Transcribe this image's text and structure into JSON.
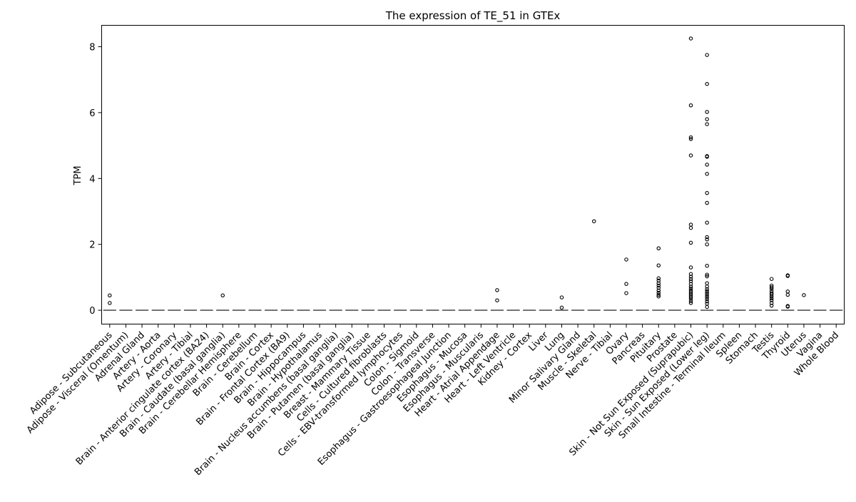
{
  "chart_data": {
    "type": "box",
    "title": "The expression of TE_51 in GTEx",
    "xlabel": "",
    "ylabel": "TPM",
    "ylim": [
      -0.42,
      8.65
    ],
    "yticks": [
      0,
      2,
      4,
      6,
      8
    ],
    "grid": false,
    "legend": "none",
    "colors": {
      "axis": "#000000",
      "median": "#555555",
      "outlier": "#000000"
    },
    "categories": [
      "Adipose - Subcutaneous",
      "Adipose - Visceral (Omentum)",
      "Adrenal Gland",
      "Artery - Aorta",
      "Artery - Coronary",
      "Artery - Tibial",
      "Brain - Anterior cingulate cortex (BA24)",
      "Brain - Caudate (basal ganglia)",
      "Brain - Cerebellar Hemisphere",
      "Brain - Cerebellum",
      "Brain - Cortex",
      "Brain - Frontal Cortex (BA9)",
      "Brain - Hippocampus",
      "Brain - Hypothalamus",
      "Brain - Nucleus accumbens (basal ganglia)",
      "Brain - Putamen (basal ganglia)",
      "Breast - Mammary Tissue",
      "Cells - Cultured fibroblasts",
      "Cells - EBV-transformed lymphocytes",
      "Colon - Sigmoid",
      "Colon - Transverse",
      "Esophagus - Gastroesophageal Junction",
      "Esophagus - Mucosa",
      "Esophagus - Muscularis",
      "Heart - Atrial Appendage",
      "Heart - Left Ventricle",
      "Kidney - Cortex",
      "Liver",
      "Lung",
      "Minor Salivary Gland",
      "Muscle - Skeletal",
      "Nerve - Tibial",
      "Ovary",
      "Pancreas",
      "Pituitary",
      "Prostate",
      "Skin - Not Sun Exposed (Suprapubic)",
      "Skin - Sun Exposed (Lower leg)",
      "Small Intestine - Terminal Ileum",
      "Spleen",
      "Stomach",
      "Testis",
      "Thyroid",
      "Uterus",
      "Vagina",
      "Whole Blood"
    ],
    "medians": [
      0,
      0,
      0,
      0,
      0,
      0,
      0,
      0,
      0,
      0,
      0,
      0,
      0,
      0,
      0,
      0,
      0,
      0,
      0,
      0,
      0,
      0,
      0,
      0,
      0,
      0,
      0,
      0,
      0,
      0,
      0,
      0,
      0,
      0,
      0,
      0,
      0,
      0,
      0,
      0,
      0,
      0,
      0,
      0,
      0,
      0
    ],
    "outliers": [
      [
        0.45,
        0.22
      ],
      [],
      [],
      [],
      [],
      [],
      [],
      [
        0.45
      ],
      [],
      [],
      [],
      [],
      [],
      [],
      [],
      [],
      [],
      [],
      [],
      [],
      [],
      [],
      [],
      [],
      [
        0.61,
        0.3
      ],
      [],
      [],
      [],
      [
        0.39,
        0.08
      ],
      [],
      [
        2.7
      ],
      [],
      [
        1.54,
        0.8,
        0.52
      ],
      [],
      [
        1.88,
        1.36,
        0.97,
        0.9,
        0.82,
        0.75,
        0.68,
        0.6,
        0.53,
        0.47,
        0.42
      ],
      [],
      [
        8.25,
        6.22,
        5.25,
        5.2,
        4.7,
        2.6,
        2.5,
        2.05,
        1.3,
        1.1,
        1.02,
        0.95,
        0.88,
        0.8,
        0.72,
        0.66,
        0.6,
        0.55,
        0.5,
        0.45,
        0.4,
        0.35,
        0.28,
        0.22
      ],
      [
        7.75,
        6.87,
        6.02,
        5.8,
        5.65,
        4.68,
        4.66,
        4.42,
        4.14,
        3.56,
        3.26,
        2.66,
        2.22,
        2.15,
        2.0,
        1.35,
        1.08,
        1.03,
        0.82,
        0.72,
        0.64,
        0.58,
        0.52,
        0.46,
        0.4,
        0.34,
        0.27,
        0.2,
        0.1
      ],
      [],
      [],
      [],
      [
        0.95,
        0.75,
        0.7,
        0.65,
        0.58,
        0.52,
        0.48,
        0.42,
        0.36,
        0.3,
        0.22,
        0.14
      ],
      [
        1.06,
        1.04,
        0.57,
        0.47,
        0.13,
        0.11
      ],
      [
        0.46
      ],
      [],
      []
    ]
  }
}
